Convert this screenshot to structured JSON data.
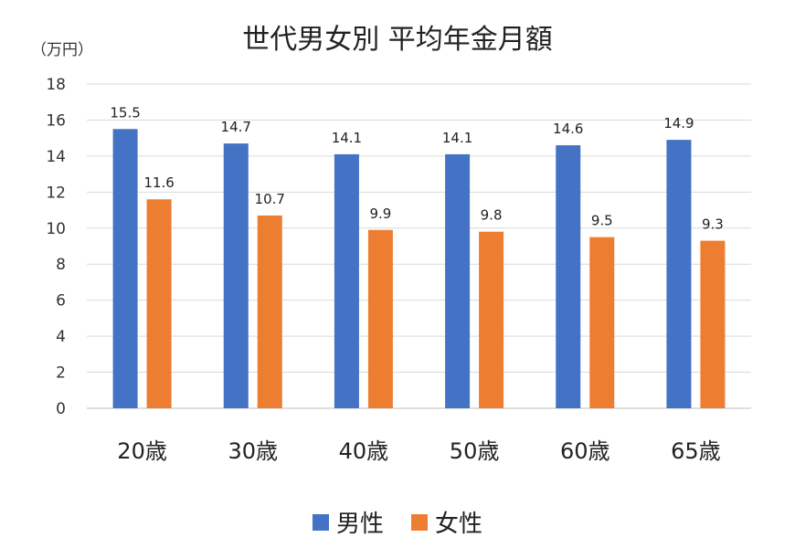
{
  "chart_data": {
    "type": "bar",
    "title": "世代男女別 平均年金月額",
    "ylabel": "（万円）",
    "xlabel": "",
    "categories": [
      "20歳",
      "30歳",
      "40歳",
      "50歳",
      "60歳",
      "65歳"
    ],
    "series": [
      {
        "name": "男性",
        "color": "#4472C4",
        "values": [
          15.5,
          14.7,
          14.1,
          14.1,
          14.6,
          14.9
        ]
      },
      {
        "name": "女性",
        "color": "#ED7D31",
        "values": [
          11.6,
          10.7,
          9.9,
          9.8,
          9.5,
          9.3
        ]
      }
    ],
    "ylim": [
      0,
      18
    ],
    "yticks": [
      0,
      2,
      4,
      6,
      8,
      10,
      12,
      14,
      16,
      18
    ],
    "grid": true,
    "legend": "bottom-center"
  }
}
